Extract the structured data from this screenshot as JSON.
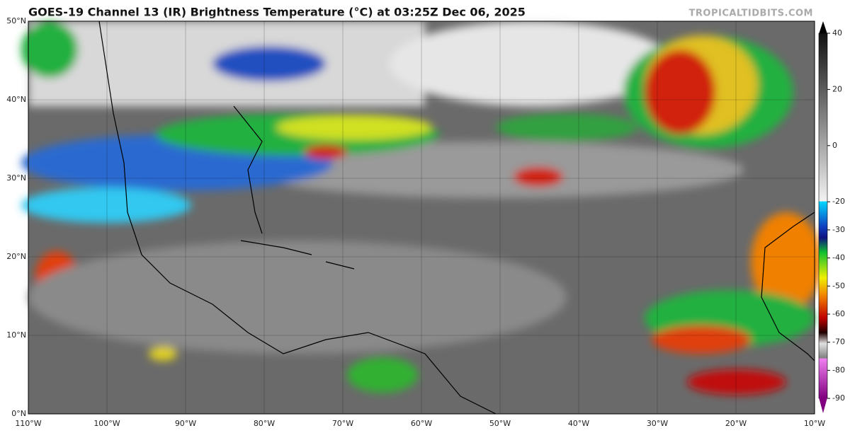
{
  "header": {
    "title": "GOES-19 Channel 13 (IR) Brightness Temperature (°C) at 03:25Z Dec 06, 2025",
    "watermark": "TROPICALTIDBITS.COM"
  },
  "map": {
    "lat_labels": [
      "50°N",
      "40°N",
      "30°N",
      "20°N",
      "10°N",
      "0°N"
    ],
    "lon_labels": [
      "110°W",
      "100°W",
      "90°W",
      "80°W",
      "70°W",
      "60°W",
      "50°W",
      "40°W",
      "30°W",
      "20°W",
      "10°W"
    ]
  },
  "colorbar": {
    "ticks": [
      40,
      20,
      0,
      -20,
      -30,
      -40,
      -50,
      -60,
      -70,
      -80,
      -90
    ]
  }
}
